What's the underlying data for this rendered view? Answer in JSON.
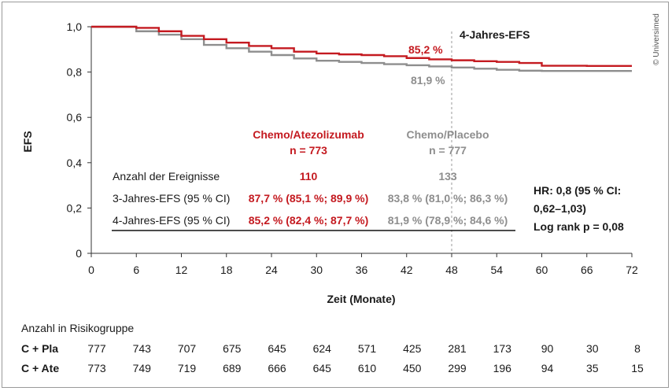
{
  "chart_data": {
    "type": "line",
    "xlabel": "Zeit (Monate)",
    "ylabel": "EFS",
    "xlim": [
      0,
      72
    ],
    "ylim": [
      0,
      1.0
    ],
    "x_ticks": [
      "0",
      "6",
      "12",
      "18",
      "24",
      "30",
      "36",
      "42",
      "48",
      "54",
      "60",
      "66",
      "72"
    ],
    "y_ticks": [
      "0",
      "0,2",
      "0,4",
      "0,6",
      "0,8",
      "1,0"
    ],
    "series": [
      {
        "name": "Chemo/Atezolizumab",
        "color": "#c41a20",
        "x": [
          0,
          3,
          6,
          9,
          12,
          15,
          18,
          21,
          24,
          27,
          30,
          33,
          36,
          39,
          42,
          45,
          48,
          51,
          54,
          57,
          60,
          66,
          72
        ],
        "y": [
          1.0,
          1.0,
          0.995,
          0.98,
          0.96,
          0.945,
          0.93,
          0.915,
          0.905,
          0.89,
          0.882,
          0.878,
          0.875,
          0.87,
          0.862,
          0.856,
          0.852,
          0.848,
          0.845,
          0.84,
          0.828,
          0.827,
          0.827
        ]
      },
      {
        "name": "Chemo/Placebo",
        "color": "#8e8e8e",
        "x": [
          0,
          3,
          6,
          9,
          12,
          15,
          18,
          21,
          24,
          27,
          30,
          33,
          36,
          39,
          42,
          45,
          48,
          51,
          54,
          57,
          60,
          66,
          72
        ],
        "y": [
          1.0,
          1.0,
          0.98,
          0.965,
          0.945,
          0.92,
          0.905,
          0.89,
          0.875,
          0.86,
          0.85,
          0.845,
          0.84,
          0.835,
          0.83,
          0.825,
          0.82,
          0.815,
          0.81,
          0.806,
          0.805,
          0.805,
          0.805
        ]
      }
    ],
    "annotations": {
      "vline_x": 48,
      "vline_label": "4-Jahres-EFS",
      "ate_value": "85,2 %",
      "pla_value": "81,9 %"
    },
    "summary_table": {
      "col1_title": "Chemo/Atezolizumab",
      "col1_n": "n = 773",
      "col2_title": "Chemo/Placebo",
      "col2_n": "n = 777",
      "rows": [
        {
          "label": "Anzahl der Ereignisse",
          "col1": "110",
          "col2": "133"
        },
        {
          "label": "3-Jahres-EFS (95 % CI)",
          "col1": "87,7 % (85,1 %; 89,9 %)",
          "col2": "83,8 % (81,0 %; 86,3 %)"
        },
        {
          "label": "4-Jahres-EFS (95 % CI)",
          "col1": "85,2 % (82,4 %; 87,7 %)",
          "col2": "81,9 % (78,9 %; 84,6 %)"
        }
      ]
    },
    "hr_text": [
      "HR: 0,8 (95 % CI:",
      "0,62–1,03)",
      "Log rank p = 0,08"
    ],
    "watermark": "© Universimed",
    "risk_table": {
      "title": "Anzahl in Risikogruppe",
      "rows": [
        {
          "label": "C + Pla",
          "color": "#8e8e8e",
          "values": [
            "777",
            "743",
            "707",
            "675",
            "645",
            "624",
            "571",
            "425",
            "281",
            "173",
            "90",
            "30",
            "8"
          ]
        },
        {
          "label": "C + Ate",
          "color": "#c41a20",
          "values": [
            "773",
            "749",
            "719",
            "689",
            "666",
            "645",
            "610",
            "450",
            "299",
            "196",
            "94",
            "35",
            "15"
          ]
        }
      ]
    }
  }
}
